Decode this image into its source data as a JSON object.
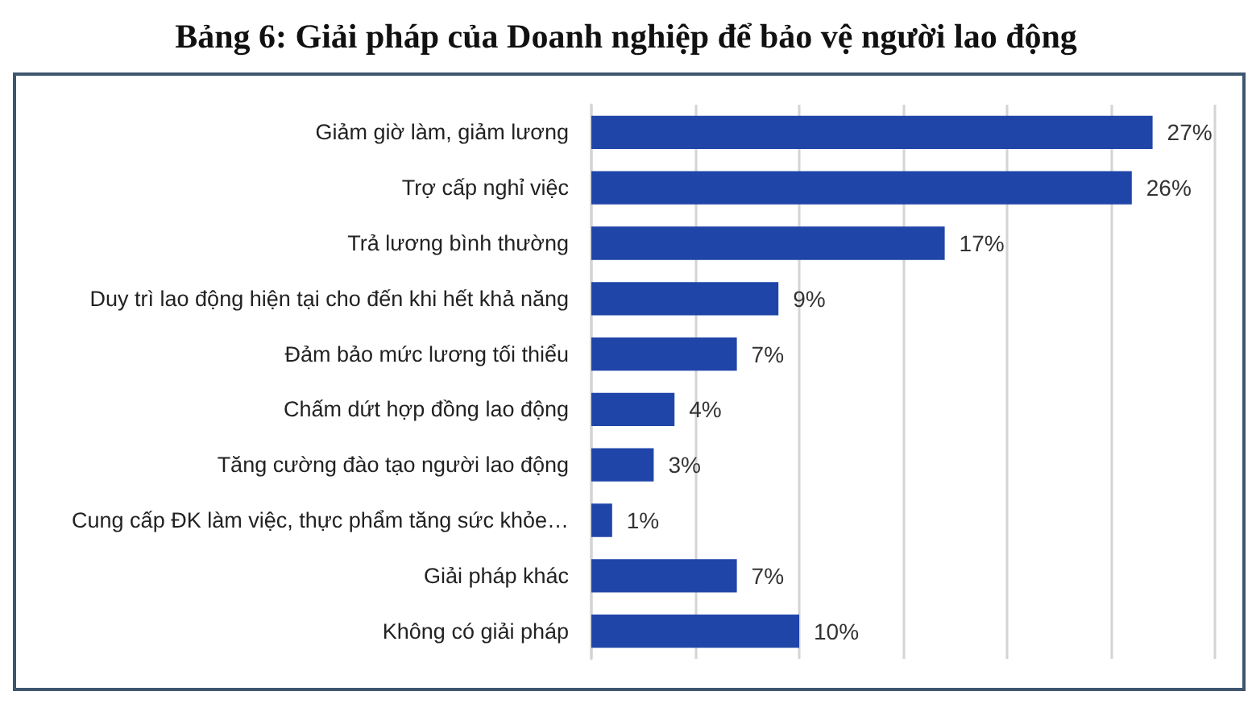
{
  "chart_data": {
    "type": "bar",
    "orientation": "horizontal",
    "title": "Bảng 6: Giải pháp của Doanh nghiệp để bảo vệ người lao động",
    "categories": [
      "Giảm giờ làm, giảm lương",
      "Trợ cấp nghỉ việc",
      "Trả lương bình thường",
      "Duy trì lao động hiện tại cho đến khi hết khả năng",
      "Đảm bảo mức lương tối thiểu",
      "Chấm dứt hợp đồng lao động",
      "Tăng cường đào tạo người lao động",
      "Cung cấp ĐK làm việc, thực phẩm tăng sức khỏe…",
      "Giải pháp khác",
      "Không có giải pháp"
    ],
    "values": [
      27,
      26,
      17,
      9,
      7,
      4,
      3,
      1,
      7,
      10
    ],
    "value_labels": [
      "27%",
      "26%",
      "17%",
      "9%",
      "7%",
      "4%",
      "3%",
      "1%",
      "7%",
      "10%"
    ],
    "color": "#1f45a8",
    "xlim": [
      0,
      30
    ],
    "xticks": [
      {
        "value": 0,
        "label": null
      },
      {
        "value": 5,
        "label": null
      },
      {
        "value": 10,
        "label": null
      },
      {
        "value": 15,
        "label": null
      },
      {
        "value": 20,
        "label": null
      },
      {
        "value": 25,
        "label": null
      },
      {
        "value": 30,
        "label": null
      }
    ],
    "grid": "x",
    "tick_labels": "y"
  }
}
